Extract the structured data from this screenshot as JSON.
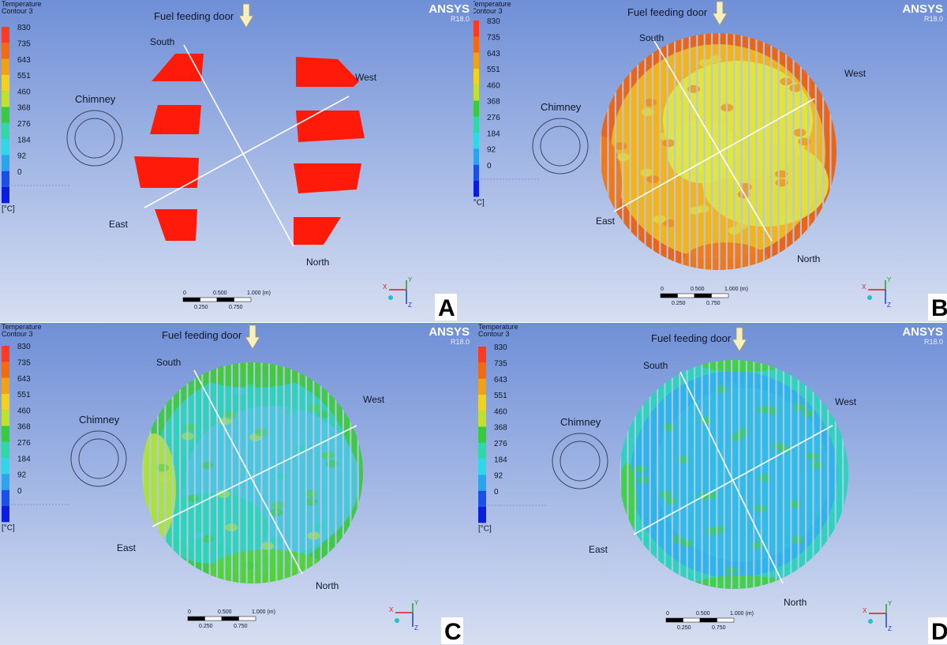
{
  "panels": [
    {
      "letter": "A",
      "disc": "segments"
    },
    {
      "letter": "B",
      "disc": "full",
      "base": "#f2b41a",
      "rim": "#e8661c",
      "blobs": [
        {
          "c": "#e0e840",
          "dx": 25,
          "dy": -40,
          "rx": 95,
          "ry": 75
        },
        {
          "c": "#dfe33f",
          "dx": 60,
          "dy": 40,
          "rx": 80,
          "ry": 55
        },
        {
          "c": "#e0e840",
          "dx": -20,
          "dy": 0,
          "rx": 45,
          "ry": 40
        },
        {
          "c": "#ee7a1c",
          "dx": -150,
          "dy": 40,
          "rx": 28,
          "ry": 60
        },
        {
          "c": "#ee7a1c",
          "dx": 10,
          "dy": 140,
          "rx": 55,
          "ry": 25
        }
      ]
    },
    {
      "letter": "C",
      "disc": "full",
      "base": "#30d0bc",
      "rim": "#3fc84a",
      "blobs": [
        {
          "c": "#4ec6e0",
          "dx": 25,
          "dy": 10,
          "rx": 110,
          "ry": 95
        },
        {
          "c": "#2fd4b8",
          "dx": -50,
          "dy": 70,
          "rx": 70,
          "ry": 45
        },
        {
          "c": "#b5e23a",
          "dx": -125,
          "dy": 20,
          "rx": 28,
          "ry": 70
        },
        {
          "c": "#52d23a",
          "dx": 20,
          "dy": 125,
          "rx": 75,
          "ry": 28
        },
        {
          "c": "#45c83f",
          "dx": 0,
          "dy": -130,
          "rx": 75,
          "ry": 22
        }
      ]
    },
    {
      "letter": "D",
      "disc": "full",
      "base": "#2db4ea",
      "rim": "#2fd2be",
      "blobs": [
        {
          "c": "#32bde6",
          "dx": 10,
          "dy": 0,
          "rx": 110,
          "ry": 110
        },
        {
          "c": "#44cf3f",
          "dx": -135,
          "dy": 35,
          "rx": 12,
          "ry": 50
        },
        {
          "c": "#44cf3f",
          "dx": 10,
          "dy": 140,
          "rx": 60,
          "ry": 12
        },
        {
          "c": "#44cf3f",
          "dx": 10,
          "dy": -140,
          "rx": 55,
          "ry": 10
        }
      ]
    }
  ],
  "legend": {
    "title1": "Temperature",
    "title2": "Contour 3",
    "unit": "[°C]",
    "ticks": [
      "830",
      "735",
      "643",
      "551",
      "460",
      "368",
      "276",
      "184",
      "92",
      "0"
    ],
    "colors": [
      "#ff3a1e",
      "#f56a0e",
      "#f2a014",
      "#f2d21a",
      "#bfe22c",
      "#37cc3e",
      "#2ed8a8",
      "#2fd8e6",
      "#2aa4ee",
      "#1a4fe8",
      "#0a1ee0"
    ]
  },
  "labels": {
    "fuel_door": "Fuel feeding door",
    "south": "South",
    "west": "West",
    "east": "East",
    "north": "North",
    "chimney": "Chimney"
  },
  "brand": {
    "name": "ANSYS",
    "version": "R18.0"
  },
  "scale": {
    "top": [
      "0",
      "0.500",
      "1.000  (m)"
    ],
    "bottom": [
      "0.250",
      "0.750"
    ]
  },
  "axes": {
    "x": "X",
    "y": "Y",
    "z": "Z"
  }
}
